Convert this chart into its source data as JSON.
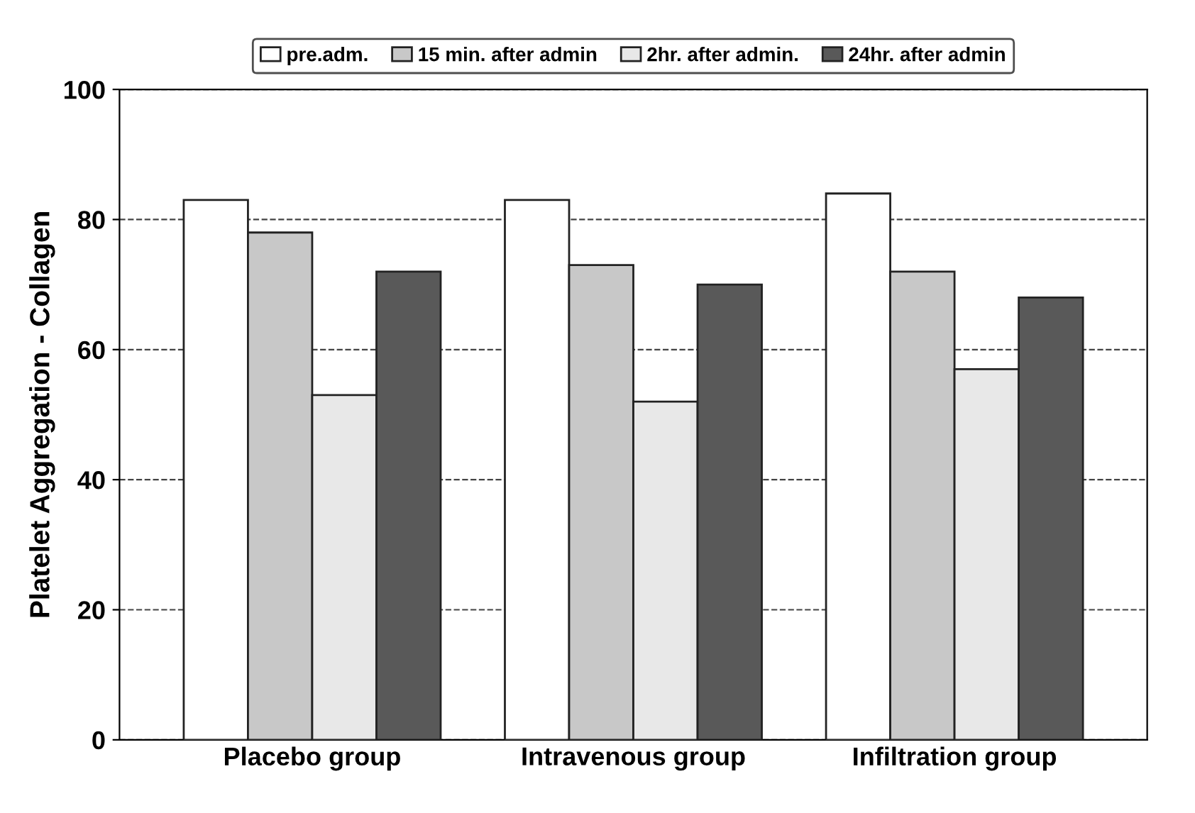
{
  "chart_data": {
    "type": "bar",
    "ylabel": "Platelet Aggregation - Collagen",
    "categories": [
      "Placebo group",
      "Intravenous group",
      "Infiltration group"
    ],
    "series": [
      {
        "name": "pre.adm.",
        "color": "#ffffff",
        "values": [
          83,
          83,
          84
        ]
      },
      {
        "name": "15 min. after admin",
        "color": "#c8c8c8",
        "values": [
          78,
          73,
          72
        ]
      },
      {
        "name": "2hr. after admin.",
        "color": "#e8e8e8",
        "values": [
          53,
          52,
          57
        ]
      },
      {
        "name": "24hr. after admin",
        "color": "#595959",
        "values": [
          72,
          70,
          68
        ]
      }
    ],
    "ylim": [
      0,
      100
    ],
    "yticks": [
      0,
      20,
      40,
      60,
      80,
      100
    ],
    "grid": "y",
    "line_style": "dashed",
    "legend": "top"
  }
}
